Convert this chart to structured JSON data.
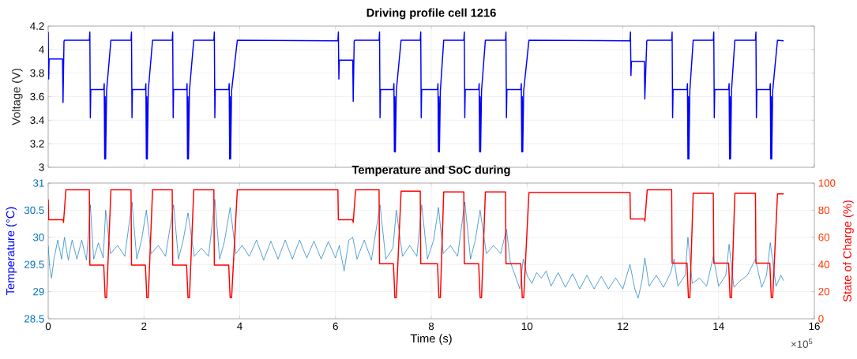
{
  "chart_data": [
    {
      "type": "line",
      "title": "Driving profile cell 1216",
      "ylabel": "Voltage (V)",
      "xlim": [
        0,
        16
      ],
      "ylim": [
        3,
        4.2
      ],
      "xticks": [
        0,
        2,
        4,
        6,
        8,
        10,
        12,
        14,
        16
      ],
      "yticks": [
        3,
        3.2,
        3.4,
        3.6,
        3.8,
        4,
        4.2
      ],
      "grid": true,
      "tick_labels": "y",
      "series": [
        {
          "color": "#0000ff",
          "x": [
            0,
            0.01,
            0.02,
            0.3,
            0.31,
            0.33,
            0.34,
            0.86,
            0.87,
            0.88,
            0.89,
            1.16,
            1.17,
            1.18,
            1.19,
            1.2,
            1.22,
            1.31,
            1.73,
            1.74,
            1.75,
            1.76,
            2.03,
            2.04,
            2.05,
            2.06,
            2.07,
            2.09,
            2.18,
            2.59,
            2.6,
            2.61,
            2.62,
            2.89,
            2.9,
            2.91,
            2.92,
            2.93,
            2.95,
            3.04,
            3.46,
            3.47,
            3.48,
            3.49,
            3.77,
            3.78,
            3.79,
            3.8,
            3.81,
            3.83,
            3.95,
            6.05,
            6.06,
            6.07,
            6.08,
            6.36,
            6.37,
            6.39,
            6.4,
            6.91,
            6.92,
            6.93,
            6.94,
            7.21,
            7.22,
            7.23,
            7.24,
            7.25,
            7.27,
            7.37,
            7.77,
            7.78,
            7.79,
            7.8,
            8.13,
            8.14,
            8.15,
            8.16,
            8.17,
            8.19,
            8.26,
            8.68,
            8.69,
            8.7,
            8.71,
            8.99,
            9,
            9.01,
            9.02,
            9.03,
            9.05,
            9.13,
            9.55,
            9.56,
            9.57,
            9.58,
            9.87,
            9.88,
            9.89,
            9.9,
            9.91,
            9.93,
            10.04,
            12.15,
            12.16,
            12.17,
            12.18,
            12.45,
            12.46,
            12.5,
            12.51,
            13.02,
            13.03,
            13.04,
            13.05,
            13.34,
            13.35,
            13.36,
            13.37,
            13.38,
            13.4,
            13.47,
            13.89,
            13.9,
            13.91,
            13.92,
            14.21,
            14.22,
            14.23,
            14.24,
            14.25,
            14.27,
            14.34,
            14.77,
            14.78,
            14.79,
            14.8,
            15.07,
            15.08,
            15.09,
            15.1,
            15.11,
            15.13,
            15.23,
            15.36
          ],
          "values": [
            4.15,
            3.75,
            3.92,
            3.92,
            3.55,
            4.07,
            4.08,
            4.08,
            4.15,
            3.42,
            3.66,
            3.66,
            3.71,
            3.07,
            3.6,
            3.07,
            3.65,
            4.08,
            4.08,
            4.15,
            3.42,
            3.66,
            3.66,
            3.71,
            3.07,
            3.6,
            3.07,
            3.65,
            4.08,
            4.08,
            4.15,
            3.42,
            3.66,
            3.66,
            3.71,
            3.07,
            3.6,
            3.07,
            3.65,
            4.08,
            4.08,
            4.15,
            3.42,
            3.66,
            3.66,
            3.71,
            3.07,
            3.6,
            3.07,
            3.65,
            4.08,
            4.075,
            4.15,
            3.75,
            3.91,
            3.91,
            3.56,
            4.07,
            4.08,
            4.08,
            4.15,
            3.42,
            3.66,
            3.66,
            3.71,
            3.13,
            3.6,
            3.13,
            3.65,
            4.08,
            4.08,
            4.15,
            3.42,
            3.66,
            3.66,
            3.71,
            3.13,
            3.6,
            3.13,
            3.65,
            4.08,
            4.08,
            4.15,
            3.42,
            3.66,
            3.66,
            3.71,
            3.13,
            3.6,
            3.13,
            3.65,
            4.08,
            4.08,
            4.15,
            3.42,
            3.66,
            3.66,
            3.71,
            3.13,
            3.6,
            3.13,
            3.65,
            4.08,
            4.075,
            4.15,
            3.78,
            3.9,
            3.9,
            3.58,
            4.07,
            4.08,
            4.08,
            4.15,
            3.42,
            3.66,
            3.66,
            3.71,
            3.07,
            3.6,
            3.07,
            3.65,
            4.08,
            4.08,
            4.15,
            3.42,
            3.66,
            3.66,
            3.71,
            3.07,
            3.6,
            3.07,
            3.65,
            4.08,
            4.08,
            4.15,
            3.42,
            3.66,
            3.66,
            3.71,
            3.07,
            3.6,
            3.07,
            3.65,
            4.08,
            4.075
          ]
        }
      ]
    },
    {
      "type": "line",
      "title": "Temperature and SoC during",
      "xlabel": "Time (s)",
      "ylabel": "Temperature (°C)",
      "y2label": "State of Charge (%)",
      "xlim": [
        0,
        16
      ],
      "ylim": [
        28.5,
        31
      ],
      "y2lim": [
        0,
        100
      ],
      "xticks": [
        0,
        2,
        4,
        6,
        8,
        10,
        12,
        14,
        16
      ],
      "yticks": [
        28.5,
        29,
        29.5,
        30,
        30.5,
        31
      ],
      "y2ticks": [
        0,
        20,
        40,
        60,
        80,
        100
      ],
      "grid": true,
      "annotations": [
        "×10$^{5}$"
      ],
      "series": [
        {
          "color": "#0072bd",
          "x": [
            0,
            0.03,
            0.07,
            0.12,
            0.2,
            0.28,
            0.34,
            0.42,
            0.5,
            0.6,
            0.7,
            0.8,
            0.88,
            0.95,
            1.05,
            1.15,
            1.2,
            1.3,
            1.45,
            1.6,
            1.75,
            1.85,
            1.95,
            2.05,
            2.15,
            2.3,
            2.45,
            2.62,
            2.72,
            2.82,
            2.92,
            3.05,
            3.2,
            3.35,
            3.48,
            3.58,
            3.68,
            3.8,
            3.92,
            4.05,
            4.2,
            4.35,
            4.5,
            4.65,
            4.8,
            4.95,
            5.1,
            5.25,
            5.4,
            5.55,
            5.7,
            5.85,
            6.0,
            6.08,
            6.18,
            6.28,
            6.36,
            6.45,
            6.6,
            6.75,
            6.93,
            7.05,
            7.2,
            7.27,
            7.4,
            7.55,
            7.7,
            7.8,
            7.92,
            8.05,
            8.15,
            8.25,
            8.4,
            8.55,
            8.7,
            8.82,
            8.92,
            9.02,
            9.15,
            9.3,
            9.45,
            9.57,
            9.65,
            9.75,
            9.85,
            9.92,
            10.0,
            10.1,
            10.2,
            10.3,
            10.4,
            10.5,
            10.65,
            10.8,
            10.95,
            11.1,
            11.25,
            11.4,
            11.55,
            11.7,
            11.85,
            12.0,
            12.15,
            12.25,
            12.32,
            12.4,
            12.46,
            12.55,
            12.7,
            12.85,
            13.0,
            13.07,
            13.15,
            13.3,
            13.36,
            13.45,
            13.6,
            13.75,
            13.89,
            14.0,
            14.15,
            14.22,
            14.32,
            14.45,
            14.6,
            14.77,
            14.9,
            15.0,
            15.08,
            15.2,
            15.3,
            15.36
          ],
          "values": [
            29.85,
            29.45,
            29.25,
            29.6,
            29.95,
            29.6,
            30.0,
            29.58,
            29.95,
            29.6,
            29.95,
            29.58,
            30.6,
            29.6,
            29.9,
            29.62,
            30.5,
            29.7,
            29.85,
            29.65,
            30.65,
            29.6,
            29.95,
            30.5,
            29.7,
            29.85,
            29.65,
            30.6,
            29.6,
            29.95,
            30.45,
            29.65,
            29.8,
            29.65,
            30.7,
            29.6,
            29.92,
            30.55,
            29.7,
            29.85,
            29.65,
            29.95,
            29.58,
            29.93,
            29.6,
            29.95,
            29.6,
            29.95,
            29.62,
            29.93,
            29.6,
            29.92,
            29.62,
            29.85,
            29.38,
            29.95,
            30.0,
            29.6,
            29.95,
            29.58,
            30.6,
            29.6,
            29.8,
            30.5,
            29.65,
            29.85,
            29.65,
            30.6,
            29.6,
            29.95,
            30.55,
            29.7,
            29.85,
            29.65,
            30.65,
            29.6,
            29.95,
            30.5,
            29.7,
            29.85,
            29.7,
            30.15,
            29.55,
            29.3,
            29.05,
            29.6,
            29.3,
            29.15,
            29.35,
            29.25,
            29.38,
            29.1,
            29.35,
            29.08,
            29.33,
            29.05,
            29.3,
            29.05,
            29.28,
            29.05,
            29.25,
            29.05,
            29.5,
            29.05,
            28.88,
            29.2,
            29.62,
            29.1,
            29.3,
            29.08,
            29.35,
            29.6,
            29.1,
            29.3,
            30.0,
            29.15,
            29.25,
            29.1,
            29.65,
            29.1,
            29.3,
            29.87,
            29.08,
            29.2,
            29.3,
            29.6,
            29.08,
            29.3,
            29.9,
            29.1,
            29.3,
            29.2
          ]
        },
        {
          "color": "#ff0000",
          "axis": "y2",
          "x": [
            0,
            0.01,
            0.31,
            0.32,
            0.37,
            0.86,
            0.87,
            1.16,
            1.19,
            1.22,
            1.31,
            1.73,
            1.74,
            2.03,
            2.06,
            2.09,
            2.18,
            2.59,
            2.6,
            2.89,
            2.92,
            2.95,
            3.04,
            3.46,
            3.47,
            3.77,
            3.8,
            3.83,
            3.95,
            6.05,
            6.06,
            6.36,
            6.37,
            6.42,
            6.91,
            6.92,
            7.21,
            7.24,
            7.27,
            7.37,
            7.77,
            7.78,
            8.13,
            8.16,
            8.19,
            8.26,
            8.68,
            8.69,
            8.99,
            9.02,
            9.05,
            9.13,
            9.55,
            9.56,
            9.87,
            9.9,
            9.93,
            10.04,
            12.15,
            12.16,
            12.45,
            12.46,
            12.51,
            13.02,
            13.03,
            13.34,
            13.37,
            13.4,
            13.47,
            13.89,
            13.9,
            14.21,
            14.24,
            14.27,
            14.34,
            14.77,
            14.78,
            15.07,
            15.1,
            15.13,
            15.23,
            15.36
          ],
          "values": [
            88,
            73,
            73,
            71,
            95,
            95,
            39.5,
            39.5,
            15.5,
            15.5,
            95,
            95,
            39.5,
            39.5,
            15.5,
            15.5,
            95,
            95,
            39.5,
            39.5,
            15.5,
            15.5,
            95,
            95,
            39.5,
            39.5,
            15.5,
            15.5,
            95,
            95,
            73,
            73,
            71,
            95,
            95,
            40.5,
            40.5,
            15.5,
            15.5,
            94,
            94,
            40.5,
            40.5,
            15.5,
            15.5,
            93.5,
            93.5,
            40.5,
            40.5,
            15.5,
            15.5,
            93.5,
            93.5,
            40.5,
            40.5,
            15.5,
            15.5,
            93,
            93,
            73.5,
            73.5,
            72,
            95,
            95,
            41,
            41,
            15.5,
            15.5,
            92.5,
            92.5,
            41,
            41,
            15.5,
            15.5,
            92.5,
            92.5,
            41,
            41,
            15.5,
            15.5,
            92,
            92
          ]
        }
      ]
    }
  ]
}
